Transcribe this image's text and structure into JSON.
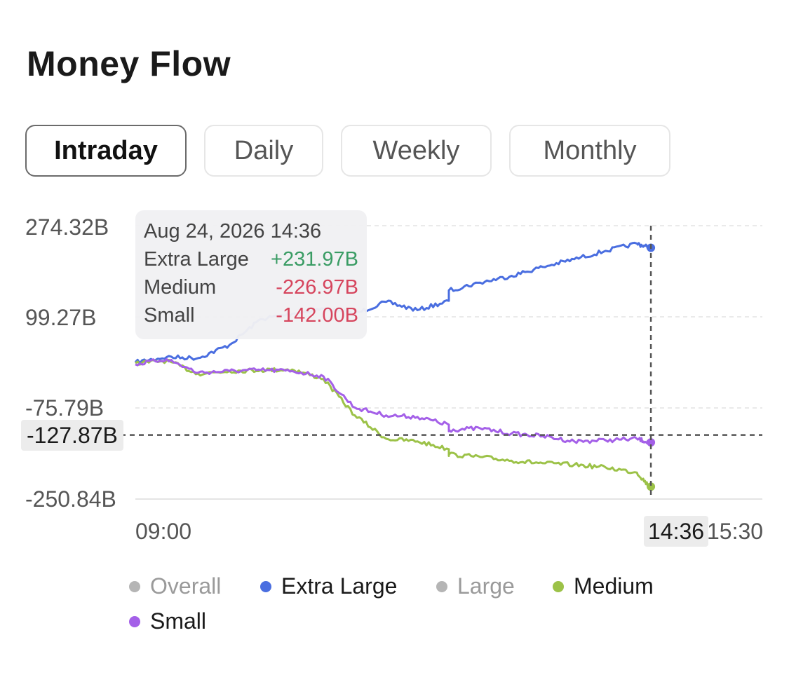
{
  "title": "Money Flow",
  "tabs": [
    {
      "label": "Intraday",
      "active": true
    },
    {
      "label": "Daily",
      "active": false
    },
    {
      "label": "Weekly",
      "active": false
    },
    {
      "label": "Monthly",
      "active": false
    }
  ],
  "crosshair": {
    "y_value": "-127.87B",
    "x_value": "14:36"
  },
  "tooltip": {
    "date": "Aug 24, 2026 14:36",
    "rows": [
      {
        "label": "Extra Large",
        "value": "+231.97B",
        "color": "#3a9c64"
      },
      {
        "label": "Medium",
        "value": "-226.97B",
        "color": "#d6455d"
      },
      {
        "label": "Small",
        "value": "-142.00B",
        "color": "#d6455d"
      }
    ]
  },
  "legend": [
    {
      "label": "Overall",
      "color": "#b5b5b5",
      "enabled": false
    },
    {
      "label": "Extra Large",
      "color": "#4a6ee0",
      "enabled": true
    },
    {
      "label": "Large",
      "color": "#b5b5b5",
      "enabled": false
    },
    {
      "label": "Medium",
      "color": "#9cc248",
      "enabled": true
    },
    {
      "label": "Small",
      "color": "#a460e8",
      "enabled": true
    }
  ],
  "chart_data": {
    "type": "line",
    "y_tick_labels": [
      "274.32B",
      "99.27B",
      "-75.79B",
      "-250.84B"
    ],
    "x_tick_labels": [
      "09:00",
      "15:30"
    ],
    "ylim": [
      -250.84,
      274.32
    ],
    "x_range": [
      "09:00",
      "15:30"
    ],
    "y_unit": "B",
    "grid": true,
    "series": [
      {
        "name": "Extra Large",
        "color": "#4a6ee0",
        "x": [
          "09:00",
          "09:15",
          "09:30",
          "09:45",
          "10:00",
          "10:15",
          "10:30",
          "10:45",
          "11:00",
          "11:15",
          "11:30",
          "13:00",
          "13:15",
          "13:30",
          "13:45",
          "14:00",
          "14:15",
          "14:30",
          "14:36"
        ],
        "y": [
          12,
          22,
          20,
          45,
          95,
          105,
          115,
          105,
          128,
          112,
          130,
          150,
          165,
          178,
          195,
          210,
          226,
          240,
          231.97
        ]
      },
      {
        "name": "Medium",
        "color": "#9cc248",
        "x": [
          "09:00",
          "09:15",
          "09:30",
          "09:45",
          "10:00",
          "10:15",
          "10:30",
          "10:45",
          "11:00",
          "11:15",
          "11:30",
          "13:00",
          "13:15",
          "13:30",
          "13:45",
          "14:00",
          "14:15",
          "14:30",
          "14:36"
        ],
        "y": [
          10,
          15,
          -10,
          -5,
          -3,
          -2,
          -20,
          -90,
          -135,
          -140,
          -155,
          -165,
          -170,
          -177,
          -182,
          -185,
          -190,
          -200,
          -226.97
        ]
      },
      {
        "name": "Small",
        "color": "#a460e8",
        "x": [
          "09:00",
          "09:15",
          "09:30",
          "09:45",
          "10:00",
          "10:15",
          "10:30",
          "10:45",
          "11:00",
          "11:15",
          "11:30",
          "13:00",
          "13:15",
          "13:30",
          "13:45",
          "14:00",
          "14:15",
          "14:30",
          "14:36"
        ],
        "y": [
          8,
          18,
          -8,
          -5,
          -3,
          -5,
          -15,
          -75,
          -90,
          -93,
          -108,
          -118,
          -115,
          -125,
          -130,
          -140,
          -138,
          -135,
          -142.0
        ]
      }
    ]
  }
}
